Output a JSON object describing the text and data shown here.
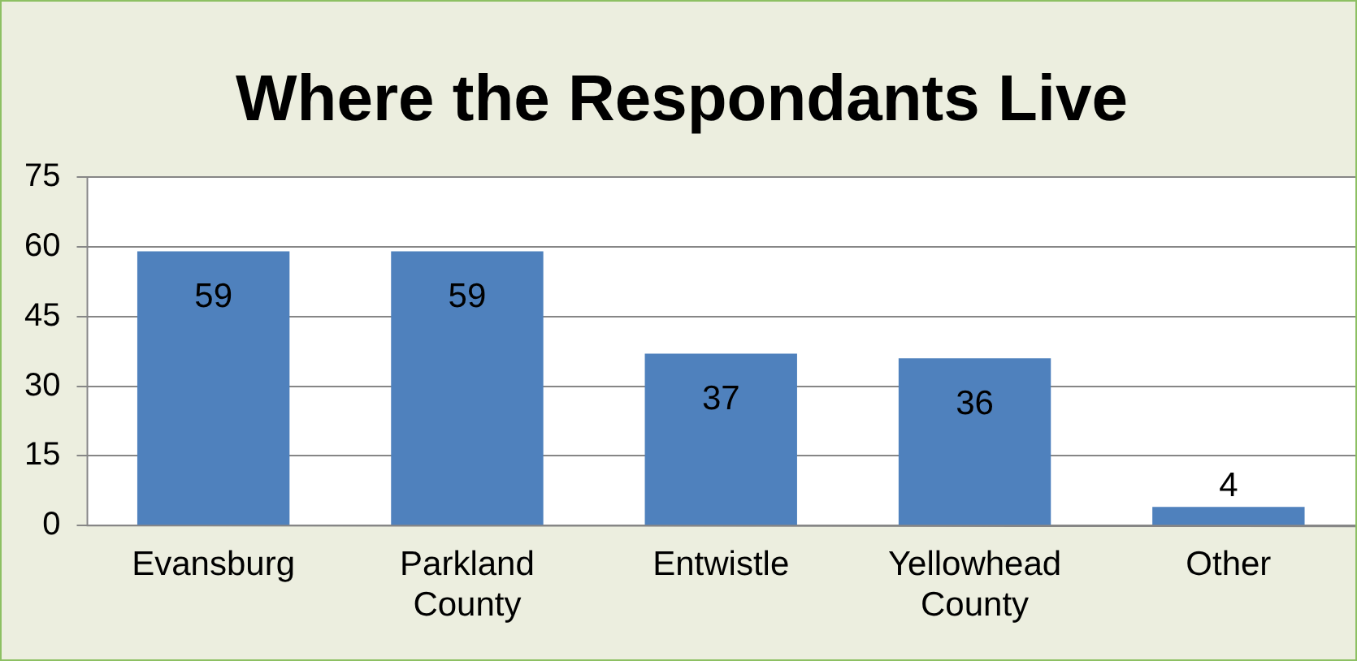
{
  "chart_data": {
    "type": "bar",
    "title": "Where the Respondants Live",
    "categories": [
      "Evansburg",
      "Parkland County",
      "Entwistle",
      "Yellowhead County",
      "Other"
    ],
    "values": [
      59,
      59,
      37,
      36,
      4
    ],
    "color": "#4f81bd",
    "ylim": [
      0,
      75
    ],
    "yticks": [
      0,
      15,
      30,
      45,
      60,
      75
    ],
    "grid": "y",
    "data_labels": true,
    "legend": false
  }
}
